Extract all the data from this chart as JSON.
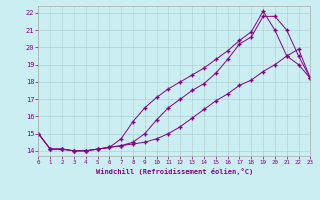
{
  "xlabel": "Windchill (Refroidissement éolien,°C)",
  "background_color": "#cbeef3",
  "line_color": "#880088",
  "xlim": [
    0,
    23
  ],
  "ylim": [
    13.7,
    22.4
  ],
  "yticks": [
    14,
    15,
    16,
    17,
    18,
    19,
    20,
    21,
    22
  ],
  "xticks": [
    0,
    1,
    2,
    3,
    4,
    5,
    6,
    7,
    8,
    9,
    10,
    11,
    12,
    13,
    14,
    15,
    16,
    17,
    18,
    19,
    20,
    21,
    22,
    23
  ],
  "series1_x": [
    0,
    1,
    2,
    3,
    4,
    5,
    6,
    7,
    8,
    9,
    10,
    11,
    12,
    13,
    14,
    15,
    16,
    17,
    18,
    19,
    20,
    21,
    22,
    23
  ],
  "series1_y": [
    15.0,
    14.1,
    14.1,
    14.0,
    14.0,
    14.1,
    14.2,
    14.7,
    15.7,
    16.5,
    17.1,
    17.6,
    18.0,
    18.4,
    18.8,
    19.3,
    19.8,
    20.4,
    20.9,
    22.1,
    21.0,
    19.5,
    19.0,
    18.2
  ],
  "series2_x": [
    0,
    1,
    2,
    3,
    4,
    5,
    6,
    7,
    8,
    9,
    10,
    11,
    12,
    13,
    14,
    15,
    16,
    17,
    18,
    19,
    20,
    21,
    22,
    23
  ],
  "series2_y": [
    15.0,
    14.1,
    14.1,
    14.0,
    14.0,
    14.1,
    14.2,
    14.3,
    14.5,
    15.0,
    15.8,
    16.5,
    17.0,
    17.5,
    17.9,
    18.5,
    19.3,
    20.2,
    20.6,
    21.8,
    21.8,
    21.0,
    19.5,
    18.2
  ],
  "series3_x": [
    0,
    1,
    2,
    3,
    4,
    5,
    6,
    7,
    8,
    9,
    10,
    11,
    12,
    13,
    14,
    15,
    16,
    17,
    18,
    19,
    20,
    21,
    22,
    23
  ],
  "series3_y": [
    15.0,
    14.1,
    14.1,
    14.0,
    14.0,
    14.1,
    14.2,
    14.3,
    14.4,
    14.5,
    14.7,
    15.0,
    15.4,
    15.9,
    16.4,
    16.9,
    17.3,
    17.8,
    18.1,
    18.6,
    19.0,
    19.5,
    19.9,
    18.2
  ]
}
